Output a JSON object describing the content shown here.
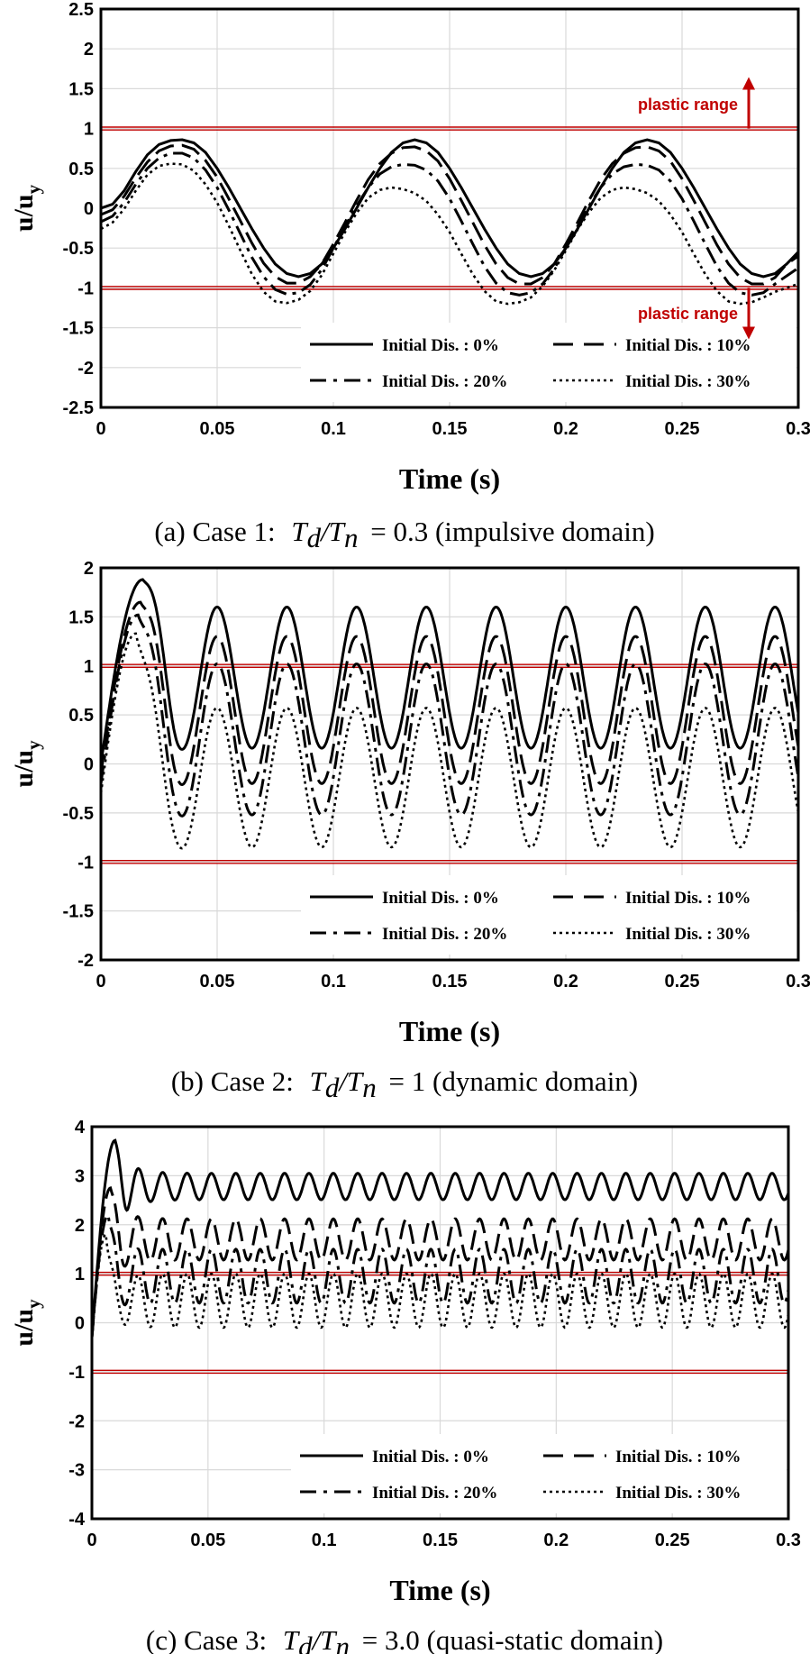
{
  "chart_data": [
    {
      "type": "line",
      "title": "",
      "caption_prefix": "(a) Case 1:",
      "caption_ratio": "T_d/T_n = 0.3",
      "caption_suffix": "(impulsive domain)",
      "caption_math_T1": "T",
      "caption_math_d": "d",
      "caption_math_slash": "/",
      "caption_math_T2": "T",
      "caption_math_n": "n",
      "caption_value": "= 0.3",
      "xlabel": "Time (s)",
      "ylabel": "u/u",
      "ylabel_sub": "y",
      "xlim": [
        0,
        0.3
      ],
      "ylim": [
        -2.5,
        2.5
      ],
      "xticks": [
        "0",
        "0.05",
        "0.1",
        "0.15",
        "0.2",
        "0.25",
        "0.3"
      ],
      "yticks": [
        "2.5",
        "2",
        "1.5",
        "1",
        "0.5",
        "0",
        "-0.5",
        "-1",
        "-1.5",
        "-2",
        "-2.5"
      ],
      "ytick_values": [
        2.5,
        2,
        1.5,
        1,
        0.5,
        0,
        -0.5,
        -1,
        -1.5,
        -2,
        -2.5
      ],
      "yield_lines": [
        1,
        -1
      ],
      "annotations": [
        {
          "text": "plastic range",
          "y": 1.6,
          "arrow": "up"
        },
        {
          "text": "plastic range",
          "y": -1.6,
          "arrow": "down"
        }
      ],
      "series": [
        {
          "name": "Initial Dis. : 0%",
          "style": "solid",
          "x": [
            0,
            0.005,
            0.01,
            0.015,
            0.02,
            0.025,
            0.03,
            0.035,
            0.04,
            0.045,
            0.05,
            0.055,
            0.06,
            0.065,
            0.07,
            0.075,
            0.08,
            0.085,
            0.09,
            0.095,
            0.1,
            0.105,
            0.11,
            0.115,
            0.12,
            0.125,
            0.13,
            0.135,
            0.14,
            0.145,
            0.15,
            0.155,
            0.16,
            0.165,
            0.17,
            0.175,
            0.18,
            0.185,
            0.19,
            0.195,
            0.2,
            0.205,
            0.21,
            0.215,
            0.22,
            0.225,
            0.23,
            0.235,
            0.24,
            0.245,
            0.25,
            0.255,
            0.26,
            0.265,
            0.27,
            0.275,
            0.28,
            0.285,
            0.29,
            0.295,
            0.3
          ],
          "y": [
            0.0,
            0.05,
            0.22,
            0.46,
            0.67,
            0.8,
            0.85,
            0.86,
            0.82,
            0.7,
            0.5,
            0.26,
            0.0,
            -0.26,
            -0.5,
            -0.7,
            -0.82,
            -0.86,
            -0.82,
            -0.7,
            -0.5,
            -0.26,
            0.0,
            0.26,
            0.5,
            0.7,
            0.82,
            0.86,
            0.82,
            0.7,
            0.5,
            0.26,
            0.0,
            -0.26,
            -0.5,
            -0.7,
            -0.82,
            -0.86,
            -0.82,
            -0.7,
            -0.5,
            -0.26,
            0.0,
            0.26,
            0.5,
            0.7,
            0.82,
            0.86,
            0.82,
            0.7,
            0.5,
            0.26,
            0.0,
            -0.26,
            -0.5,
            -0.7,
            -0.82,
            -0.86,
            -0.82,
            -0.7,
            -0.55
          ]
        },
        {
          "name": "Initial Dis. : 10%",
          "style": "dash",
          "x": [
            0,
            0.005,
            0.01,
            0.015,
            0.02,
            0.025,
            0.03,
            0.035,
            0.04,
            0.045,
            0.05,
            0.055,
            0.06,
            0.065,
            0.07,
            0.075,
            0.08,
            0.085,
            0.09,
            0.095,
            0.1,
            0.105,
            0.11,
            0.115,
            0.12,
            0.125,
            0.13,
            0.135,
            0.14,
            0.145,
            0.15,
            0.155,
            0.16,
            0.165,
            0.17,
            0.175,
            0.18,
            0.185,
            0.19,
            0.195,
            0.2,
            0.205,
            0.21,
            0.215,
            0.22,
            0.225,
            0.23,
            0.235,
            0.24,
            0.245,
            0.25,
            0.255,
            0.26,
            0.265,
            0.27,
            0.275,
            0.28,
            0.285,
            0.29,
            0.295,
            0.3
          ],
          "y": [
            -0.08,
            -0.02,
            0.15,
            0.38,
            0.58,
            0.72,
            0.78,
            0.79,
            0.74,
            0.6,
            0.39,
            0.12,
            -0.16,
            -0.44,
            -0.69,
            -0.86,
            -0.94,
            -0.94,
            -0.86,
            -0.7,
            -0.45,
            -0.18,
            0.1,
            0.36,
            0.56,
            0.69,
            0.76,
            0.77,
            0.72,
            0.59,
            0.37,
            0.1,
            -0.18,
            -0.46,
            -0.7,
            -0.87,
            -0.95,
            -0.95,
            -0.87,
            -0.7,
            -0.45,
            -0.18,
            0.1,
            0.36,
            0.56,
            0.69,
            0.76,
            0.77,
            0.72,
            0.59,
            0.37,
            0.1,
            -0.18,
            -0.46,
            -0.7,
            -0.87,
            -0.95,
            -0.95,
            -0.87,
            -0.7,
            -0.6
          ]
        },
        {
          "name": "Initial Dis. : 20%",
          "style": "dashdot",
          "x": [
            0,
            0.005,
            0.01,
            0.015,
            0.02,
            0.025,
            0.03,
            0.035,
            0.04,
            0.045,
            0.05,
            0.055,
            0.06,
            0.065,
            0.07,
            0.075,
            0.08,
            0.085,
            0.09,
            0.095,
            0.1,
            0.105,
            0.11,
            0.115,
            0.12,
            0.125,
            0.13,
            0.135,
            0.14,
            0.145,
            0.15,
            0.155,
            0.16,
            0.165,
            0.17,
            0.175,
            0.18,
            0.185,
            0.19,
            0.195,
            0.2,
            0.205,
            0.21,
            0.215,
            0.22,
            0.225,
            0.23,
            0.235,
            0.24,
            0.245,
            0.25,
            0.255,
            0.26,
            0.265,
            0.27,
            0.275,
            0.28,
            0.285,
            0.29,
            0.295,
            0.3
          ],
          "y": [
            -0.17,
            -0.1,
            0.07,
            0.3,
            0.5,
            0.63,
            0.69,
            0.69,
            0.63,
            0.48,
            0.26,
            -0.02,
            -0.32,
            -0.62,
            -0.86,
            -1.02,
            -1.08,
            -1.06,
            -0.96,
            -0.77,
            -0.5,
            -0.23,
            0.03,
            0.26,
            0.43,
            0.52,
            0.55,
            0.54,
            0.48,
            0.34,
            0.12,
            -0.16,
            -0.45,
            -0.73,
            -0.94,
            -1.06,
            -1.09,
            -1.06,
            -0.95,
            -0.76,
            -0.5,
            -0.23,
            0.03,
            0.26,
            0.43,
            0.52,
            0.55,
            0.54,
            0.48,
            0.34,
            0.12,
            -0.16,
            -0.45,
            -0.73,
            -0.94,
            -1.06,
            -1.09,
            -1.06,
            -0.95,
            -0.85,
            -0.75
          ]
        },
        {
          "name": "Initial Dis. : 30%",
          "style": "dot",
          "x": [
            0,
            0.005,
            0.01,
            0.015,
            0.02,
            0.025,
            0.03,
            0.035,
            0.04,
            0.045,
            0.05,
            0.055,
            0.06,
            0.065,
            0.07,
            0.075,
            0.08,
            0.085,
            0.09,
            0.095,
            0.1,
            0.105,
            0.11,
            0.115,
            0.12,
            0.125,
            0.13,
            0.135,
            0.14,
            0.145,
            0.15,
            0.155,
            0.16,
            0.165,
            0.17,
            0.175,
            0.18,
            0.185,
            0.19,
            0.195,
            0.2,
            0.205,
            0.21,
            0.215,
            0.22,
            0.225,
            0.23,
            0.235,
            0.24,
            0.245,
            0.25,
            0.255,
            0.26,
            0.265,
            0.27,
            0.275,
            0.28,
            0.285,
            0.29,
            0.295,
            0.3
          ],
          "y": [
            -0.26,
            -0.18,
            -0.01,
            0.22,
            0.42,
            0.53,
            0.56,
            0.55,
            0.47,
            0.3,
            0.07,
            -0.22,
            -0.53,
            -0.83,
            -1.05,
            -1.17,
            -1.19,
            -1.15,
            -1.04,
            -0.84,
            -0.57,
            -0.3,
            -0.06,
            0.13,
            0.23,
            0.26,
            0.24,
            0.19,
            0.09,
            -0.08,
            -0.3,
            -0.57,
            -0.83,
            -1.04,
            -1.17,
            -1.2,
            -1.18,
            -1.12,
            -0.98,
            -0.78,
            -0.53,
            -0.27,
            -0.05,
            0.13,
            0.23,
            0.26,
            0.24,
            0.19,
            0.09,
            -0.08,
            -0.3,
            -0.57,
            -0.83,
            -1.04,
            -1.17,
            -1.2,
            -1.18,
            -1.12,
            -1.05,
            -1.0,
            -0.95
          ]
        }
      ]
    },
    {
      "type": "line",
      "title": "",
      "caption_prefix": "(b) Case 2:",
      "caption_ratio": "T_d/T_n = 1",
      "caption_suffix": "(dynamic domain)",
      "caption_math_T1": "T",
      "caption_math_d": "d",
      "caption_math_slash": "/",
      "caption_math_T2": "T",
      "caption_math_n": "n",
      "caption_value": "= 1",
      "xlabel": "Time (s)",
      "ylabel": "u/u",
      "ylabel_sub": "y",
      "xlim": [
        0,
        0.3
      ],
      "ylim": [
        -2,
        2
      ],
      "xticks": [
        "0",
        "0.05",
        "0.1",
        "0.15",
        "0.2",
        "0.25",
        "0.3"
      ],
      "yticks": [
        "2",
        "1.5",
        "1",
        "0.5",
        "0",
        "-0.5",
        "-1",
        "-1.5",
        "-2"
      ],
      "ytick_values": [
        2,
        1.5,
        1,
        0.5,
        0,
        -0.5,
        -1,
        -1.5,
        -2
      ],
      "yield_lines": [
        1,
        -1
      ],
      "annotations": [],
      "series": [
        {
          "name": "Initial Dis. : 0%",
          "style": "solid",
          "model": {
            "y0": 0.0,
            "peak": 1.88,
            "peak_t": 0.018,
            "center": 0.88,
            "amp": 0.72,
            "period": 0.03,
            "first_max": 0.05
          }
        },
        {
          "name": "Initial Dis. : 10%",
          "style": "dash",
          "model": {
            "y0": -0.1,
            "peak": 1.65,
            "peak_t": 0.017,
            "center": 0.55,
            "amp": 0.75,
            "period": 0.03,
            "first_max": 0.05
          }
        },
        {
          "name": "Initial Dis. : 20%",
          "style": "dashdot",
          "model": {
            "y0": -0.2,
            "peak": 1.52,
            "peak_t": 0.016,
            "center": 0.25,
            "amp": 0.77,
            "period": 0.03,
            "first_max": 0.05
          }
        },
        {
          "name": "Initial Dis. : 30%",
          "style": "dot",
          "model": {
            "y0": -0.3,
            "peak": 1.33,
            "peak_t": 0.015,
            "center": -0.14,
            "amp": 0.71,
            "period": 0.03,
            "first_max": 0.05
          }
        }
      ]
    },
    {
      "type": "line",
      "title": "",
      "caption_prefix": "(c) Case 3:",
      "caption_ratio": "T_d/T_n = 3.0",
      "caption_suffix": "(quasi-static domain)",
      "caption_math_T1": "T",
      "caption_math_d": "d",
      "caption_math_slash": "/",
      "caption_math_T2": "T",
      "caption_math_n": "n",
      "caption_value": "= 3.0",
      "xlabel": "Time (s)",
      "ylabel": "u/u",
      "ylabel_sub": "y",
      "xlim": [
        0,
        0.3
      ],
      "ylim": [
        -4,
        4
      ],
      "xticks": [
        "0",
        "0.05",
        "0.1",
        "0.15",
        "0.2",
        "0.25",
        "0.3"
      ],
      "yticks": [
        "4",
        "3",
        "2",
        "1",
        "0",
        "-1",
        "-2",
        "-3",
        "-4"
      ],
      "ytick_values": [
        4,
        3,
        2,
        1,
        0,
        -1,
        -2,
        -3,
        -4
      ],
      "yield_lines": [
        1,
        -1
      ],
      "annotations": [],
      "series": [
        {
          "name": "Initial Dis. : 0%",
          "style": "solid",
          "model": {
            "y0": -0.3,
            "peak": 3.72,
            "peak_t": 0.01,
            "center": 2.78,
            "amp": 0.27,
            "period": 0.0105,
            "first_max": 0.02
          }
        },
        {
          "name": "Initial Dis. : 10%",
          "style": "dash",
          "model": {
            "y0": -0.3,
            "peak": 2.75,
            "peak_t": 0.008,
            "center": 1.7,
            "amp": 0.42,
            "period": 0.0105,
            "first_max": 0.02
          }
        },
        {
          "name": "Initial Dis. : 20%",
          "style": "dashdot",
          "model": {
            "y0": -0.3,
            "peak": 2.2,
            "peak_t": 0.007,
            "center": 0.95,
            "amp": 0.55,
            "period": 0.0105,
            "first_max": 0.02
          }
        },
        {
          "name": "Initial Dis. : 30%",
          "style": "dot",
          "model": {
            "y0": -0.3,
            "peak": 1.8,
            "peak_t": 0.006,
            "center": 0.45,
            "amp": 0.55,
            "period": 0.0105,
            "first_max": 0.02
          }
        }
      ]
    }
  ]
}
